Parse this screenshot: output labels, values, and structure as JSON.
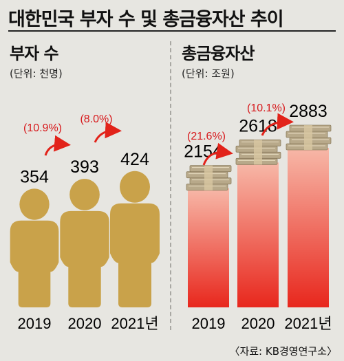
{
  "title": "대한민국 부자 수 및 총금융자산 추이",
  "source": "〈자료: KB경영연구소〉",
  "colors": {
    "person": "#c9a24a",
    "bar_top": "#f7b8a8",
    "bar_bottom": "#e8271d",
    "arrow": "#e2231a",
    "money": "#b8a98a"
  },
  "chart_data": [
    {
      "type": "bar",
      "title": "부자 수",
      "unit": "(단위: 천명)",
      "categories": [
        "2019",
        "2020",
        "2021년"
      ],
      "values": [
        354,
        393,
        424
      ],
      "growth_labels": [
        "(10.9%)",
        "(8.0%)"
      ],
      "mark": "person-icon"
    },
    {
      "type": "bar",
      "title": "총금융자산",
      "unit": "(단위: 조원)",
      "categories": [
        "2019",
        "2020",
        "2021년"
      ],
      "values": [
        2154,
        2618,
        2883
      ],
      "growth_labels": [
        "(21.6%)",
        "(10.1%)"
      ],
      "mark": "money-stack-icon"
    }
  ]
}
